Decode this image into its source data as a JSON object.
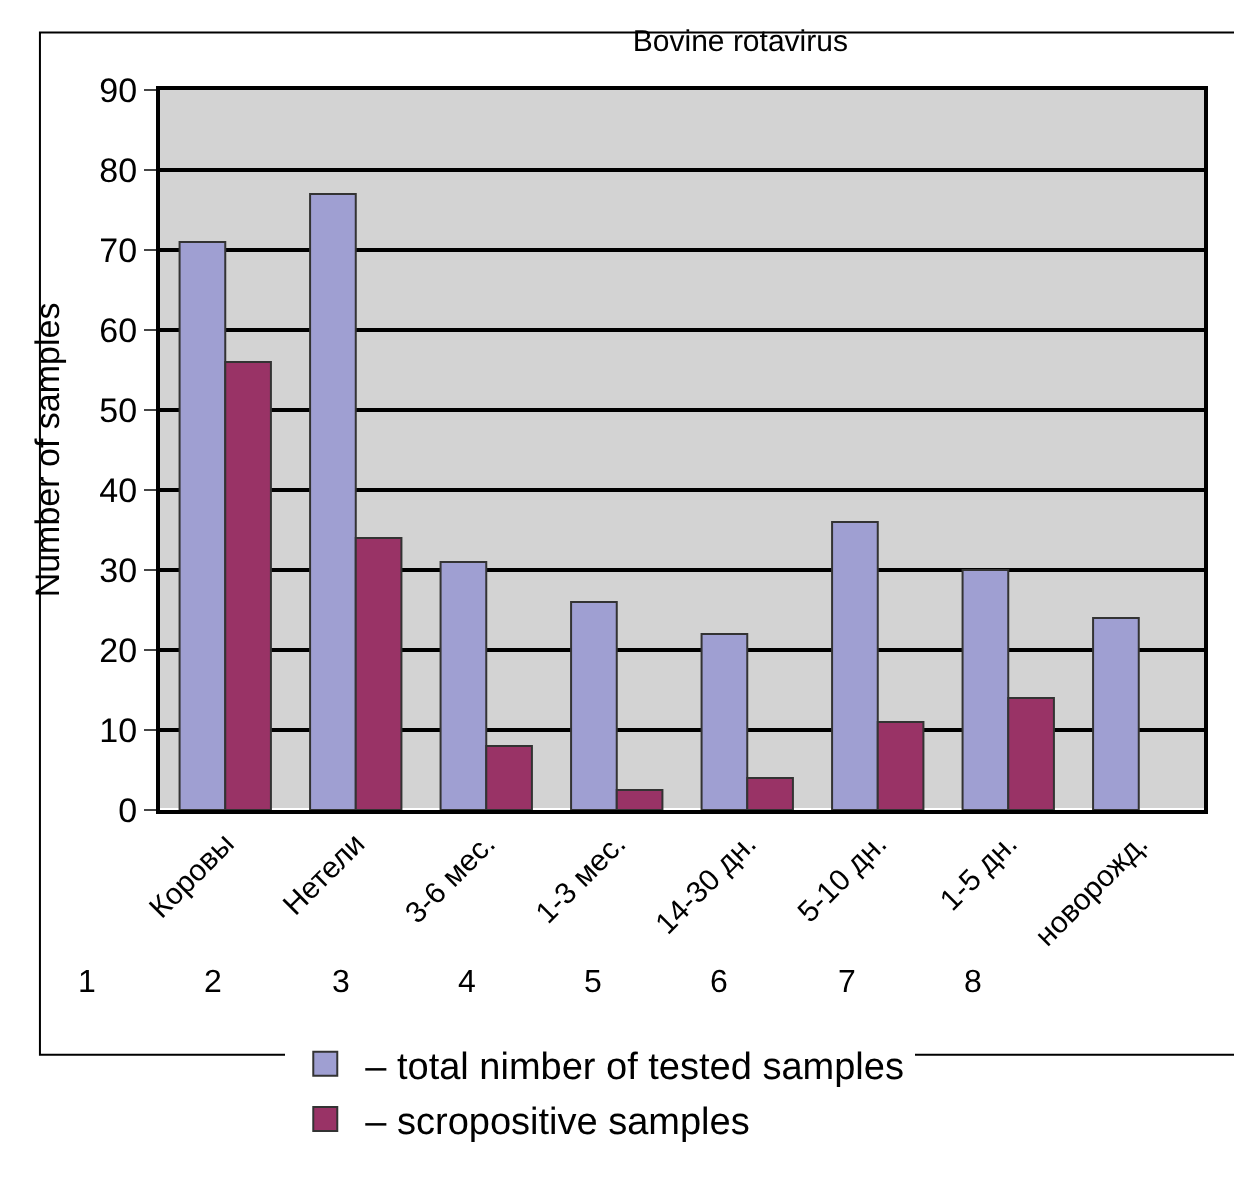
{
  "chart_data": {
    "type": "bar",
    "title": "Bovine rotavirus",
    "ylabel": "Number of samples",
    "categories": [
      "Коровы",
      "Нетели",
      "3-6 мес.",
      "1-3 мес.",
      "14-30 дн.",
      "5-10 дн.",
      "1-5 дн.",
      "новорожд."
    ],
    "series": [
      {
        "name": "– total nimber of tested samples",
        "color": "#9f9fd2",
        "values": [
          71,
          77,
          31,
          26,
          22,
          36,
          30,
          24
        ]
      },
      {
        "name": "– scropositive samples",
        "color": "#993366",
        "values": [
          56,
          34,
          8,
          2.5,
          4,
          11,
          14,
          null
        ]
      }
    ],
    "ylim": [
      0,
      90
    ],
    "yticks": [
      0,
      10,
      20,
      30,
      40,
      50,
      60,
      70,
      80,
      90
    ],
    "grid": "y",
    "legend": "bottom",
    "annotations": [
      "1",
      "2",
      "3",
      "4",
      "5",
      "6",
      "7",
      "8"
    ]
  }
}
